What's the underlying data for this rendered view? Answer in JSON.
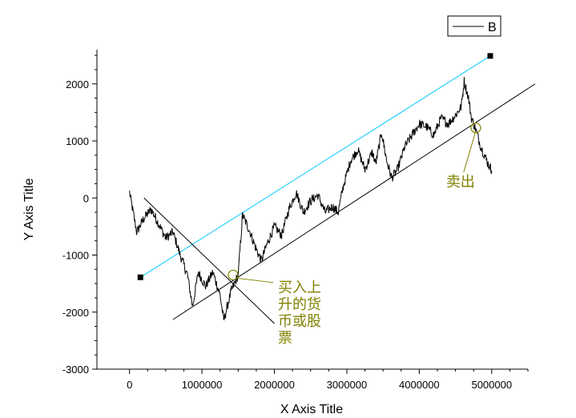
{
  "chart_data": {
    "type": "line",
    "title": "",
    "xlabel": "X Axis Title",
    "ylabel": "Y Axis Title",
    "xlim": [
      -450000,
      5500000
    ],
    "ylim": [
      -3000,
      2600
    ],
    "x_ticks": [
      {
        "value": 0,
        "label": "0"
      },
      {
        "value": 1000000,
        "label": "1000000"
      },
      {
        "value": 2000000,
        "label": "2000000"
      },
      {
        "value": 3000000,
        "label": "3000000"
      },
      {
        "value": 4000000,
        "label": "4000000"
      },
      {
        "value": 5000000,
        "label": "5000000"
      }
    ],
    "y_ticks": [
      {
        "value": -3000,
        "label": "-3000"
      },
      {
        "value": -2000,
        "label": "-2000"
      },
      {
        "value": -1000,
        "label": "-1000"
      },
      {
        "value": 0,
        "label": "0"
      },
      {
        "value": 1000,
        "label": "1000"
      },
      {
        "value": 2000,
        "label": "2000"
      }
    ],
    "legend": {
      "position": "top-right",
      "entries": [
        {
          "name": "B",
          "color": "#000000"
        }
      ]
    },
    "series": [
      {
        "name": "B",
        "color": "#000000",
        "points": [
          [
            0,
            100
          ],
          [
            100000,
            -600
          ],
          [
            200000,
            -350
          ],
          [
            300000,
            -200
          ],
          [
            400000,
            -450
          ],
          [
            500000,
            -700
          ],
          [
            600000,
            -600
          ],
          [
            700000,
            -1000
          ],
          [
            800000,
            -1350
          ],
          [
            870000,
            -1900
          ],
          [
            950000,
            -1300
          ],
          [
            1050000,
            -1550
          ],
          [
            1150000,
            -1300
          ],
          [
            1250000,
            -1700
          ],
          [
            1300000,
            -2150
          ],
          [
            1400000,
            -1650
          ],
          [
            1500000,
            -1350
          ],
          [
            1560000,
            -300
          ],
          [
            1650000,
            -550
          ],
          [
            1750000,
            -900
          ],
          [
            1820000,
            -1100
          ],
          [
            1900000,
            -800
          ],
          [
            2000000,
            -500
          ],
          [
            2100000,
            -650
          ],
          [
            2200000,
            -200
          ],
          [
            2300000,
            100
          ],
          [
            2400000,
            -250
          ],
          [
            2500000,
            -50
          ],
          [
            2600000,
            50
          ],
          [
            2700000,
            -250
          ],
          [
            2800000,
            -150
          ],
          [
            2880000,
            -250
          ],
          [
            2950000,
            200
          ],
          [
            3050000,
            650
          ],
          [
            3150000,
            850
          ],
          [
            3250000,
            500
          ],
          [
            3350000,
            800
          ],
          [
            3400000,
            600
          ],
          [
            3480000,
            1150
          ],
          [
            3550000,
            650
          ],
          [
            3620000,
            350
          ],
          [
            3700000,
            500
          ],
          [
            3800000,
            900
          ],
          [
            3900000,
            1100
          ],
          [
            4000000,
            1300
          ],
          [
            4100000,
            1250
          ],
          [
            4200000,
            1100
          ],
          [
            4300000,
            1400
          ],
          [
            4400000,
            1300
          ],
          [
            4500000,
            1450
          ],
          [
            4580000,
            1600
          ],
          [
            4620000,
            2050
          ],
          [
            4680000,
            1750
          ],
          [
            4720000,
            1400
          ],
          [
            4780000,
            1200
          ],
          [
            4850000,
            900
          ],
          [
            4950000,
            600
          ],
          [
            5000000,
            480
          ]
        ]
      }
    ],
    "trendlines": [
      {
        "name": "upper-channel-line",
        "color": "#00c8ff",
        "x1": 150000,
        "y1": -1390,
        "x2": 4980000,
        "y2": 2490
      },
      {
        "name": "lower-channel-line",
        "color": "#000000",
        "x1": 600000,
        "y1": -2130,
        "x2": 5600000,
        "y2": 2000
      },
      {
        "name": "downtrend-line",
        "color": "#000000",
        "x1": 200000,
        "y1": 0,
        "x2": 2000000,
        "y2": -2200
      }
    ],
    "markers": [
      {
        "name": "start-marker",
        "x": 150000,
        "y": -1390,
        "color": "#000000"
      },
      {
        "name": "end-marker",
        "x": 4980000,
        "y": 2490,
        "color": "#000000"
      }
    ],
    "annotations": [
      {
        "name": "buy-annotation",
        "lines": [
          "买入上",
          "升的货",
          "币或股",
          "票"
        ],
        "color": "#808000",
        "target": [
          1430000,
          -1350
        ],
        "text_at": [
          2050000,
          -1650
        ]
      },
      {
        "name": "sell-annotation",
        "lines": [
          "卖出"
        ],
        "color": "#808000",
        "target": [
          4780000,
          1230
        ],
        "text_at": [
          4370000,
          200
        ]
      }
    ]
  }
}
